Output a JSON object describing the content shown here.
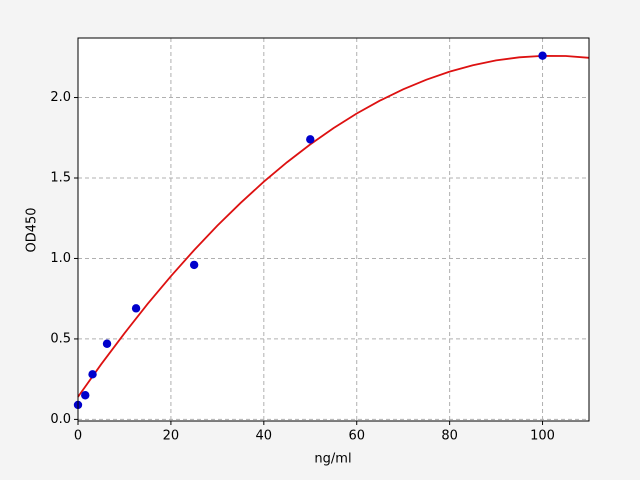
{
  "chart_data": {
    "type": "scatter",
    "x_label": "ng/ml",
    "y_label": "OD450",
    "xlim": [
      0,
      110
    ],
    "ylim": [
      -0.01,
      2.37
    ],
    "xticks": [
      0,
      20,
      40,
      60,
      80,
      100
    ],
    "yticks": [
      {
        "value": 0,
        "label": "0.0"
      },
      0.5,
      {
        "value": 1,
        "label": "1.0"
      },
      1.5,
      {
        "value": 2,
        "label": "2.0"
      }
    ],
    "grid": true,
    "series": [
      {
        "type": "scatter",
        "color": "#0000cc",
        "x": [
          0,
          1.56,
          3.13,
          6.25,
          12.5,
          25,
          50,
          100
        ],
        "values": [
          0.09,
          0.15,
          0.28,
          0.47,
          0.69,
          0.96,
          1.74,
          2.26
        ]
      },
      {
        "type": "line",
        "color": "#dd1111",
        "x": [
          0,
          5,
          10,
          15,
          20,
          25,
          30,
          35,
          40,
          45,
          50,
          55,
          60,
          65,
          70,
          75,
          80,
          85,
          90,
          95,
          100,
          105,
          110
        ],
        "values": [
          0.14,
          0.343,
          0.535,
          0.718,
          0.89,
          1.052,
          1.204,
          1.345,
          1.477,
          1.598,
          1.709,
          1.81,
          1.901,
          1.981,
          2.051,
          2.111,
          2.161,
          2.201,
          2.231,
          2.25,
          2.259,
          2.258,
          2.247
        ]
      }
    ]
  }
}
